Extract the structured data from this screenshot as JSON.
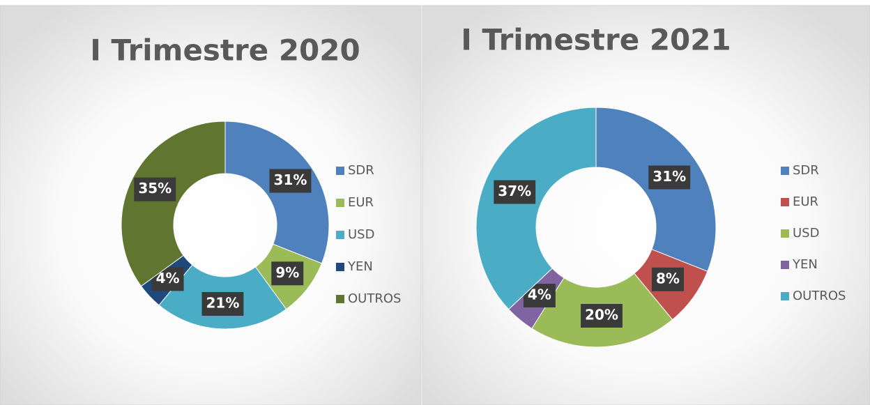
{
  "chart_data": [
    {
      "type": "doughnut",
      "title": "I Trimestre 2020",
      "categories": [
        "SDR",
        "EUR",
        "USD",
        "YEN",
        "OUTROS"
      ],
      "values": [
        31,
        9,
        21,
        4,
        35
      ],
      "value_labels": [
        "31%",
        "9%",
        "21%",
        "4%",
        "35%"
      ],
      "colors": [
        "#4f81bd",
        "#9bbb59",
        "#4bacc6",
        "#1f497d",
        "#5f7530"
      ],
      "legend": "right"
    },
    {
      "type": "doughnut",
      "title": "I Trimestre 2021",
      "categories": [
        "SDR",
        "EUR",
        "USD",
        "YEN",
        "OUTROS"
      ],
      "values": [
        31,
        8,
        20,
        4,
        37
      ],
      "value_labels": [
        "31%",
        "8%",
        "20%",
        "4%",
        "37%"
      ],
      "colors": [
        "#4f81bd",
        "#c0504d",
        "#9bbb59",
        "#8064a2",
        "#4bacc6"
      ],
      "legend": "right"
    }
  ]
}
